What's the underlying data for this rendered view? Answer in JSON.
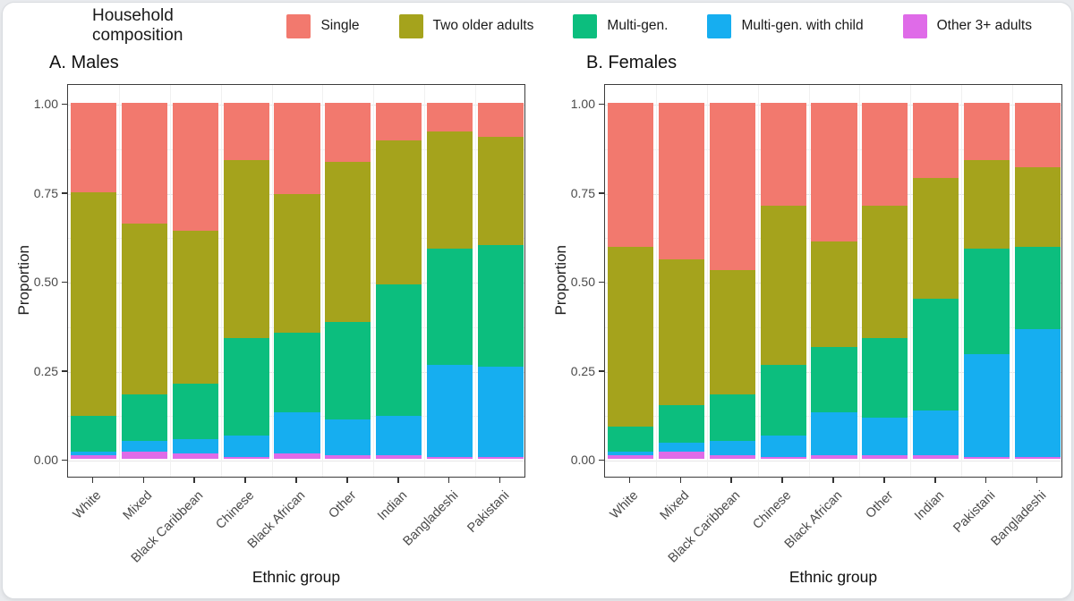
{
  "legend": {
    "title": "Household composition",
    "items": [
      {
        "label": "Single",
        "color": "#F2796E"
      },
      {
        "label": "Two older adults",
        "color": "#A5A31C"
      },
      {
        "label": "Multi-gen.",
        "color": "#0CBE7E"
      },
      {
        "label": "Multi-gen. with child",
        "color": "#16AEF0"
      },
      {
        "label": "Other 3+ adults",
        "color": "#DF6BE8"
      }
    ]
  },
  "figure": {
    "stack_order_bottom_to_top": [
      "Other 3+ adults",
      "Multi-gen. with child",
      "Multi-gen.",
      "Two older adults",
      "Single"
    ]
  },
  "chart_data": [
    {
      "type": "bar",
      "stacked": true,
      "panel_title": "A. Males",
      "xlabel": "Ethnic group",
      "ylabel": "Proportion",
      "ylim": [
        0,
        1
      ],
      "grid": true,
      "legend_position": "top",
      "y_ticks": [
        {
          "v": 0.0,
          "label": "0.00"
        },
        {
          "v": 0.25,
          "label": "0.25"
        },
        {
          "v": 0.5,
          "label": "0.50"
        },
        {
          "v": 0.75,
          "label": "0.75"
        },
        {
          "v": 1.0,
          "label": "1.00"
        }
      ],
      "categories": [
        "White",
        "Mixed",
        "Black Caribbean",
        "Chinese",
        "Black African",
        "Other",
        "Indian",
        "Bangladeshi",
        "Pakistani"
      ],
      "series": [
        {
          "name": "Single",
          "color": "#F2796E",
          "values": [
            0.25,
            0.34,
            0.36,
            0.16,
            0.255,
            0.165,
            0.105,
            0.08,
            0.095
          ]
        },
        {
          "name": "Two older adults",
          "color": "#A5A31C",
          "values": [
            0.63,
            0.48,
            0.43,
            0.5,
            0.39,
            0.45,
            0.405,
            0.33,
            0.305
          ]
        },
        {
          "name": "Multi-gen.",
          "color": "#0CBE7E",
          "values": [
            0.1,
            0.13,
            0.155,
            0.275,
            0.225,
            0.275,
            0.37,
            0.325,
            0.34
          ]
        },
        {
          "name": "Multi-gen. with child",
          "color": "#16AEF0",
          "values": [
            0.01,
            0.03,
            0.04,
            0.06,
            0.115,
            0.1,
            0.11,
            0.26,
            0.255
          ]
        },
        {
          "name": "Other 3+ adults",
          "color": "#DF6BE8",
          "values": [
            0.01,
            0.02,
            0.015,
            0.005,
            0.015,
            0.01,
            0.01,
            0.005,
            0.005
          ]
        }
      ]
    },
    {
      "type": "bar",
      "stacked": true,
      "panel_title": "B. Females",
      "xlabel": "Ethnic group",
      "ylabel": "Proportion",
      "ylim": [
        0,
        1
      ],
      "grid": true,
      "legend_position": "top",
      "y_ticks": [
        {
          "v": 0.0,
          "label": "0.00"
        },
        {
          "v": 0.25,
          "label": "0.25"
        },
        {
          "v": 0.5,
          "label": "0.50"
        },
        {
          "v": 0.75,
          "label": "0.75"
        },
        {
          "v": 1.0,
          "label": "1.00"
        }
      ],
      "categories": [
        "White",
        "Mixed",
        "Black Caribbean",
        "Chinese",
        "Black African",
        "Other",
        "Indian",
        "Pakistani",
        "Bangladeshi"
      ],
      "series": [
        {
          "name": "Single",
          "color": "#F2796E",
          "values": [
            0.405,
            0.44,
            0.47,
            0.29,
            0.39,
            0.29,
            0.21,
            0.16,
            0.18
          ]
        },
        {
          "name": "Two older adults",
          "color": "#A5A31C",
          "values": [
            0.505,
            0.41,
            0.35,
            0.445,
            0.295,
            0.37,
            0.34,
            0.25,
            0.225
          ]
        },
        {
          "name": "Multi-gen.",
          "color": "#0CBE7E",
          "values": [
            0.07,
            0.105,
            0.13,
            0.2,
            0.185,
            0.225,
            0.315,
            0.295,
            0.23
          ]
        },
        {
          "name": "Multi-gen. with child",
          "color": "#16AEF0",
          "values": [
            0.01,
            0.025,
            0.04,
            0.06,
            0.12,
            0.105,
            0.125,
            0.29,
            0.36
          ]
        },
        {
          "name": "Other 3+ adults",
          "color": "#DF6BE8",
          "values": [
            0.01,
            0.02,
            0.01,
            0.005,
            0.01,
            0.01,
            0.01,
            0.005,
            0.005
          ]
        }
      ]
    }
  ]
}
